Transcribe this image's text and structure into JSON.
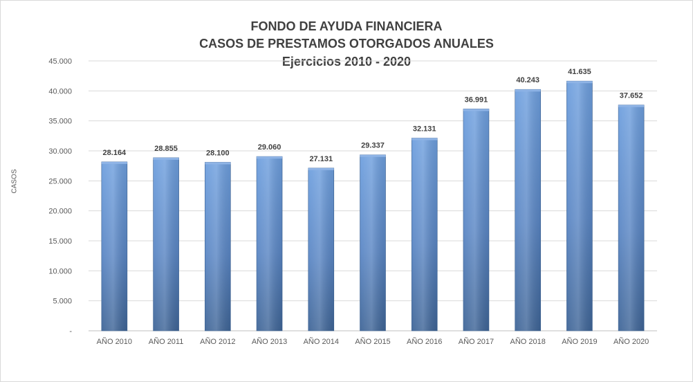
{
  "chart_data": {
    "type": "bar",
    "title": [
      "FONDO DE AYUDA FINANCIERA",
      "CASOS DE PRESTAMOS  OTORGADOS  ANUALES",
      "Ejercicios  2010 - 2020"
    ],
    "xlabel": "",
    "ylabel": "CASOS",
    "categories": [
      "AÑO 2010",
      "AÑO 2011",
      "AÑO 2012",
      "AÑO 2013",
      "AÑO 2014",
      "AÑO 2015",
      "AÑO 2016",
      "AÑO 2017",
      "AÑO 2018",
      "AÑO 2019",
      "AÑO 2020"
    ],
    "values": [
      28164,
      28855,
      28100,
      29060,
      27131,
      29337,
      32131,
      36991,
      40243,
      41635,
      37652
    ],
    "value_labels": [
      "28.164",
      "28.855",
      "28.100",
      "29.060",
      "27.131",
      "29.337",
      "32.131",
      "36.991",
      "40.243",
      "41.635",
      "37.652"
    ],
    "ylim": [
      0,
      45000
    ],
    "yticks": [
      0,
      5000,
      10000,
      15000,
      20000,
      25000,
      30000,
      35000,
      40000,
      45000
    ],
    "ytick_labels": [
      "-",
      "5.000",
      "10.000",
      "15.000",
      "20.000",
      "25.000",
      "30.000",
      "35.000",
      "40.000",
      "45.000"
    ],
    "grid": true,
    "legend": "none",
    "bar_color": "#4f81bd"
  }
}
